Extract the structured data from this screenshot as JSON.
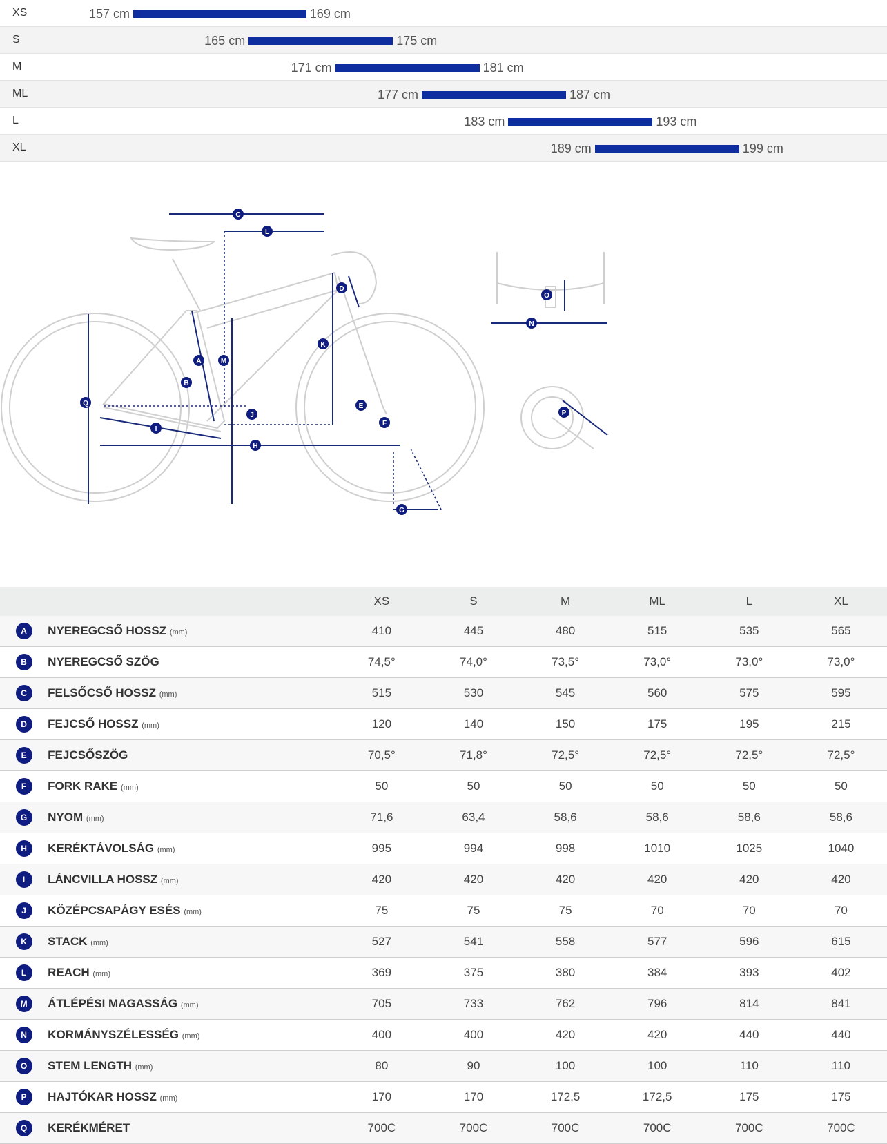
{
  "size_chart": [
    {
      "size": "XS",
      "min": "157 cm",
      "max": "169 cm",
      "min_cm": 157,
      "max_cm": 169
    },
    {
      "size": "S",
      "min": "165 cm",
      "max": "175 cm",
      "min_cm": 165,
      "max_cm": 175
    },
    {
      "size": "M",
      "min": "171 cm",
      "max": "181 cm",
      "min_cm": 171,
      "max_cm": 181
    },
    {
      "size": "ML",
      "min": "177 cm",
      "max": "187 cm",
      "min_cm": 177,
      "max_cm": 187
    },
    {
      "size": "L",
      "min": "183 cm",
      "max": "193 cm",
      "min_cm": 183,
      "max_cm": 193
    },
    {
      "size": "XL",
      "min": "189 cm",
      "max": "199 cm",
      "min_cm": 189,
      "max_cm": 199
    }
  ],
  "diagram": {
    "labels": [
      "A",
      "B",
      "C",
      "D",
      "E",
      "F",
      "G",
      "H",
      "I",
      "J",
      "K",
      "L",
      "M",
      "N",
      "O",
      "P",
      "Q"
    ]
  },
  "geometry": {
    "headers": [
      "XS",
      "S",
      "M",
      "ML",
      "L",
      "XL"
    ],
    "rows": [
      {
        "letter": "A",
        "label": "NYEREGCSŐ HOSSZ",
        "unit": "(mm)",
        "values": [
          "410",
          "445",
          "480",
          "515",
          "535",
          "565"
        ]
      },
      {
        "letter": "B",
        "label": "NYEREGCSŐ SZÖG",
        "unit": "",
        "values": [
          "74,5°",
          "74,0°",
          "73,5°",
          "73,0°",
          "73,0°",
          "73,0°"
        ]
      },
      {
        "letter": "C",
        "label": "FELSŐCSŐ HOSSZ",
        "unit": "(mm)",
        "values": [
          "515",
          "530",
          "545",
          "560",
          "575",
          "595"
        ]
      },
      {
        "letter": "D",
        "label": "FEJCSŐ HOSSZ",
        "unit": "(mm)",
        "values": [
          "120",
          "140",
          "150",
          "175",
          "195",
          "215"
        ]
      },
      {
        "letter": "E",
        "label": "FEJCSŐSZÖG",
        "unit": "",
        "values": [
          "70,5°",
          "71,8°",
          "72,5°",
          "72,5°",
          "72,5°",
          "72,5°"
        ]
      },
      {
        "letter": "F",
        "label": "FORK RAKE",
        "unit": "(mm)",
        "values": [
          "50",
          "50",
          "50",
          "50",
          "50",
          "50"
        ]
      },
      {
        "letter": "G",
        "label": "NYOM",
        "unit": "(mm)",
        "values": [
          "71,6",
          "63,4",
          "58,6",
          "58,6",
          "58,6",
          "58,6"
        ]
      },
      {
        "letter": "H",
        "label": "KERÉKTÁVOLSÁG",
        "unit": "(mm)",
        "values": [
          "995",
          "994",
          "998",
          "1010",
          "1025",
          "1040"
        ]
      },
      {
        "letter": "I",
        "label": "LÁNCVILLA HOSSZ",
        "unit": "(mm)",
        "values": [
          "420",
          "420",
          "420",
          "420",
          "420",
          "420"
        ]
      },
      {
        "letter": "J",
        "label": "KÖZÉPCSAPÁGY ESÉS",
        "unit": "(mm)",
        "values": [
          "75",
          "75",
          "75",
          "70",
          "70",
          "70"
        ]
      },
      {
        "letter": "K",
        "label": "STACK",
        "unit": "(mm)",
        "values": [
          "527",
          "541",
          "558",
          "577",
          "596",
          "615"
        ]
      },
      {
        "letter": "L",
        "label": "REACH",
        "unit": "(mm)",
        "values": [
          "369",
          "375",
          "380",
          "384",
          "393",
          "402"
        ]
      },
      {
        "letter": "M",
        "label": "ÁTLÉPÉSI MAGASSÁG",
        "unit": "(mm)",
        "values": [
          "705",
          "733",
          "762",
          "796",
          "814",
          "841"
        ]
      },
      {
        "letter": "N",
        "label": "KORMÁNYSZÉLESSÉG",
        "unit": "(mm)",
        "values": [
          "400",
          "400",
          "420",
          "420",
          "440",
          "440"
        ]
      },
      {
        "letter": "O",
        "label": "STEM LENGTH",
        "unit": "(mm)",
        "values": [
          "80",
          "90",
          "100",
          "100",
          "110",
          "110"
        ]
      },
      {
        "letter": "P",
        "label": "HAJTÓKAR HOSSZ",
        "unit": "(mm)",
        "values": [
          "170",
          "170",
          "172,5",
          "172,5",
          "175",
          "175"
        ]
      },
      {
        "letter": "Q",
        "label": "KERÉKMÉRET",
        "unit": "",
        "values": [
          "700C",
          "700C",
          "700C",
          "700C",
          "700C",
          "700C"
        ]
      }
    ]
  },
  "colors": {
    "bar": "#0e2d9f",
    "badge": "#101d80",
    "line": "#c8c8c8"
  }
}
